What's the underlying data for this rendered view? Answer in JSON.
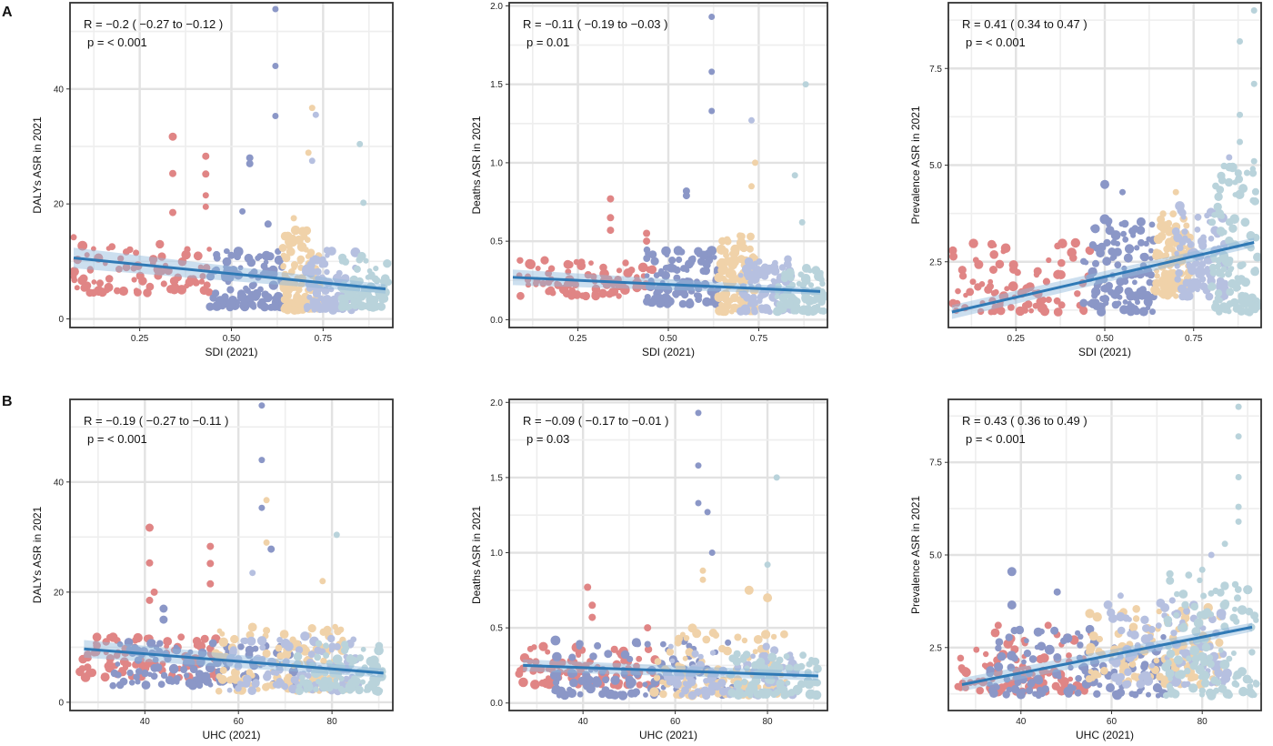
{
  "row_labels": [
    "A",
    "B"
  ],
  "colors": {
    "palette": [
      "#e08585",
      "#8b97c7",
      "#f0d2a9",
      "#b6c0e0",
      "#b9d3db"
    ],
    "trend": "#2f79b5",
    "band": "#8fb9dc"
  },
  "chart_data": [
    {
      "type": "scatter",
      "xlabel": "SDI (2021)",
      "ylabel": "DALYs ASR in 2021",
      "xlim": [
        0.06,
        0.94
      ],
      "ylim": [
        -1.5,
        55
      ],
      "xticks": [
        0.25,
        0.5,
        0.75
      ],
      "xtick_labels": [
        "0.25",
        "0.50",
        "0.75"
      ],
      "yticks": [
        0,
        20,
        40
      ],
      "ytick_labels": [
        "0",
        "20",
        "40"
      ],
      "annotation": {
        "r": "R = −0.2 ( −0.27  to  −0.12 )",
        "p": "p = < 0.001"
      },
      "trend": {
        "x": [
          0.07,
          0.92
        ],
        "y": [
          10.6,
          5.2
        ],
        "band": [
          1.8,
          0.8
        ]
      },
      "clusters": [
        {
          "x": [
            0.07,
            0.44
          ],
          "ylo": 4.5,
          "yhi": 13,
          "n": 80,
          "color": 0
        },
        {
          "x": [
            0.44,
            0.64
          ],
          "ylo": 2,
          "yhi": 12,
          "n": 110,
          "color": 1
        },
        {
          "x": [
            0.64,
            0.74
          ],
          "ylo": 1.5,
          "yhi": 16,
          "n": 110,
          "color": 2
        },
        {
          "x": [
            0.7,
            0.84
          ],
          "ylo": 1.5,
          "yhi": 12,
          "n": 90,
          "color": 3
        },
        {
          "x": [
            0.8,
            0.93
          ],
          "ylo": 2,
          "yhi": 11,
          "n": 80,
          "color": 4
        }
      ],
      "points": [
        [
          0.34,
          31.7,
          0,
          4.5
        ],
        [
          0.34,
          25.3,
          0,
          4
        ],
        [
          0.34,
          18.5,
          0,
          4
        ],
        [
          0.43,
          28.3,
          0,
          4
        ],
        [
          0.43,
          25.2,
          0,
          4
        ],
        [
          0.43,
          21.5,
          0,
          3.5
        ],
        [
          0.43,
          19.5,
          0,
          3.5
        ],
        [
          0.07,
          14.2,
          0,
          3.5
        ],
        [
          0.07,
          7.3,
          0,
          3.5
        ],
        [
          0.24,
          11.5,
          0,
          3.5
        ],
        [
          0.62,
          53.9,
          1,
          3.5
        ],
        [
          0.62,
          44,
          1,
          3.5
        ],
        [
          0.62,
          35.3,
          1,
          3.5
        ],
        [
          0.55,
          28,
          1,
          4
        ],
        [
          0.55,
          27,
          1,
          4
        ],
        [
          0.53,
          18.7,
          1,
          3.5
        ],
        [
          0.6,
          16.5,
          1,
          4
        ],
        [
          0.72,
          36.7,
          2,
          3.5
        ],
        [
          0.71,
          28.9,
          2,
          3.5
        ],
        [
          0.67,
          17.5,
          2,
          3.5
        ],
        [
          0.73,
          35.5,
          3,
          3.5
        ],
        [
          0.72,
          27.5,
          3,
          3.5
        ],
        [
          0.85,
          30.4,
          4,
          3.5
        ],
        [
          0.86,
          20.2,
          4,
          3.5
        ]
      ]
    },
    {
      "type": "scatter",
      "xlabel": "SDI (2021)",
      "ylabel": "Deaths ASR in 2021",
      "xlim": [
        0.06,
        0.94
      ],
      "ylim": [
        -0.05,
        2.02
      ],
      "xticks": [
        0.25,
        0.5,
        0.75
      ],
      "xtick_labels": [
        "0.25",
        "0.50",
        "0.75"
      ],
      "yticks": [
        0,
        0.5,
        1,
        1.5,
        2
      ],
      "ytick_labels": [
        "0.0",
        "0.5",
        "1.0",
        "1.5",
        "2.0"
      ],
      "annotation": {
        "r": "R = −0.11 ( −0.19  to  −0.03 )",
        "p": "p = 0.01"
      },
      "trend": {
        "x": [
          0.07,
          0.92
        ],
        "y": [
          0.27,
          0.18
        ],
        "band": [
          0.05,
          0.02
        ]
      },
      "clusters": [
        {
          "x": [
            0.07,
            0.46
          ],
          "ylo": 0.15,
          "yhi": 0.38,
          "n": 80,
          "color": 0
        },
        {
          "x": [
            0.44,
            0.64
          ],
          "ylo": 0.1,
          "yhi": 0.45,
          "n": 110,
          "color": 1
        },
        {
          "x": [
            0.64,
            0.74
          ],
          "ylo": 0.05,
          "yhi": 0.55,
          "n": 110,
          "color": 2
        },
        {
          "x": [
            0.7,
            0.84
          ],
          "ylo": 0.05,
          "yhi": 0.4,
          "n": 90,
          "color": 3
        },
        {
          "x": [
            0.8,
            0.93
          ],
          "ylo": 0.05,
          "yhi": 0.33,
          "n": 80,
          "color": 4
        }
      ],
      "points": [
        [
          0.34,
          0.77,
          0,
          4
        ],
        [
          0.34,
          0.65,
          0,
          4
        ],
        [
          0.34,
          0.57,
          0,
          4
        ],
        [
          0.44,
          0.55,
          0,
          4
        ],
        [
          0.44,
          0.5,
          0,
          4
        ],
        [
          0.62,
          1.93,
          1,
          3.5
        ],
        [
          0.62,
          1.58,
          1,
          3.5
        ],
        [
          0.62,
          1.33,
          1,
          3.5
        ],
        [
          0.55,
          0.82,
          1,
          4
        ],
        [
          0.55,
          0.79,
          1,
          4
        ],
        [
          0.73,
          1.27,
          3,
          3.5
        ],
        [
          0.74,
          1.0,
          2,
          3.5
        ],
        [
          0.73,
          0.85,
          2,
          3.5
        ],
        [
          0.88,
          1.5,
          4,
          3.5
        ],
        [
          0.85,
          0.92,
          4,
          3.5
        ],
        [
          0.87,
          0.62,
          4,
          3.5
        ]
      ]
    },
    {
      "type": "scatter",
      "xlabel": "SDI (2021)",
      "ylabel": "Prevalence ASR in 2021",
      "xlim": [
        0.06,
        0.94
      ],
      "ylim": [
        0.8,
        9.2
      ],
      "xticks": [
        0.25,
        0.5,
        0.75
      ],
      "xtick_labels": [
        "0.25",
        "0.50",
        "0.75"
      ],
      "yticks": [
        2.5,
        5,
        7.5
      ],
      "ytick_labels": [
        "2.5",
        "5.0",
        "7.5"
      ],
      "annotation": {
        "r": "R = 0.41 ( 0.34  to  0.47 )",
        "p": "p = < 0.001"
      },
      "trend": {
        "x": [
          0.07,
          0.92
        ],
        "y": [
          1.2,
          3.0
        ],
        "band": [
          0.18,
          0.12
        ]
      },
      "clusters": [
        {
          "x": [
            0.07,
            0.46
          ],
          "ylo": 1.2,
          "yhi": 3.0,
          "n": 90,
          "color": 0
        },
        {
          "x": [
            0.44,
            0.64
          ],
          "ylo": 1.2,
          "yhi": 3.6,
          "n": 120,
          "color": 1
        },
        {
          "x": [
            0.64,
            0.74
          ],
          "ylo": 1.6,
          "yhi": 3.8,
          "n": 110,
          "color": 2
        },
        {
          "x": [
            0.7,
            0.84
          ],
          "ylo": 1.6,
          "yhi": 4.0,
          "n": 100,
          "color": 3
        },
        {
          "x": [
            0.8,
            0.93
          ],
          "ylo": 1.2,
          "yhi": 5.0,
          "n": 110,
          "color": 4
        }
      ],
      "points": [
        [
          0.5,
          4.5,
          1,
          5
        ],
        [
          0.5,
          3.6,
          1,
          5.5
        ],
        [
          0.51,
          3.55,
          1,
          4.5
        ],
        [
          0.88,
          8.2,
          4,
          3.5
        ],
        [
          0.92,
          9.0,
          4,
          3.5
        ],
        [
          0.92,
          7.1,
          4,
          3.5
        ],
        [
          0.88,
          6.3,
          4,
          3.5
        ],
        [
          0.92,
          5.1,
          4,
          3.5
        ],
        [
          0.88,
          5.6,
          4,
          3.5
        ],
        [
          0.9,
          4.8,
          4,
          3.5
        ],
        [
          0.85,
          5.2,
          3,
          3.5
        ],
        [
          0.7,
          4.3,
          2,
          3.5
        ],
        [
          0.55,
          4.3,
          1,
          3.5
        ]
      ]
    },
    {
      "type": "scatter",
      "xlabel": "UHC (2021)",
      "ylabel": "DALYs ASR in 2021",
      "xlim": [
        24,
        93
      ],
      "ylim": [
        -1.5,
        55
      ],
      "xticks": [
        40,
        60,
        80
      ],
      "xtick_labels": [
        "40",
        "60",
        "80"
      ],
      "yticks": [
        0,
        20,
        40
      ],
      "ytick_labels": [
        "0",
        "20",
        "40"
      ],
      "annotation": {
        "r": "R = −0.19 ( −0.27  to  −0.11 )",
        "p": "p = < 0.001"
      },
      "trend": {
        "x": [
          27,
          91
        ],
        "y": [
          9.7,
          5.3
        ],
        "band": [
          1.6,
          0.8
        ]
      },
      "clusters": [
        {
          "x": [
            26,
            56
          ],
          "ylo": 4.5,
          "yhi": 12,
          "n": 90,
          "color": 0
        },
        {
          "x": [
            33,
            73
          ],
          "ylo": 3,
          "yhi": 11,
          "n": 110,
          "color": 1
        },
        {
          "x": [
            55,
            84
          ],
          "ylo": 2,
          "yhi": 14,
          "n": 110,
          "color": 2
        },
        {
          "x": [
            58,
            86
          ],
          "ylo": 2,
          "yhi": 12,
          "n": 90,
          "color": 3
        },
        {
          "x": [
            72,
            91
          ],
          "ylo": 2,
          "yhi": 11,
          "n": 90,
          "color": 4
        }
      ],
      "points": [
        [
          41,
          31.7,
          0,
          4.5
        ],
        [
          41,
          25.3,
          0,
          4
        ],
        [
          41,
          18.5,
          0,
          4
        ],
        [
          42,
          20,
          0,
          4
        ],
        [
          54,
          28.3,
          0,
          4
        ],
        [
          54,
          25.2,
          0,
          4
        ],
        [
          54,
          21.5,
          0,
          4
        ],
        [
          65,
          53.9,
          1,
          3.5
        ],
        [
          65,
          44,
          1,
          3.5
        ],
        [
          65,
          35.3,
          1,
          3.5
        ],
        [
          67,
          27.8,
          1,
          4
        ],
        [
          66,
          36.7,
          2,
          3.5
        ],
        [
          66,
          29,
          2,
          3.5
        ],
        [
          63,
          23.5,
          3,
          3.5
        ],
        [
          81,
          30.4,
          4,
          3.5
        ],
        [
          78,
          22,
          2,
          3.5
        ],
        [
          44,
          17,
          1,
          4.5
        ],
        [
          44,
          15,
          1,
          4.5
        ]
      ]
    },
    {
      "type": "scatter",
      "xlabel": "UHC (2021)",
      "ylabel": "Deaths ASR in 2021",
      "xlim": [
        24,
        93
      ],
      "ylim": [
        -0.05,
        2.02
      ],
      "xticks": [
        40,
        60,
        80
      ],
      "xtick_labels": [
        "40",
        "60",
        "80"
      ],
      "yticks": [
        0,
        0.5,
        1,
        1.5,
        2
      ],
      "ytick_labels": [
        "0.0",
        "0.5",
        "1.0",
        "1.5",
        "2.0"
      ],
      "annotation": {
        "r": "R = −0.09 ( −0.17  to  −0.01 )",
        "p": "p = 0.03"
      },
      "trend": {
        "x": [
          27,
          91
        ],
        "y": [
          0.25,
          0.18
        ],
        "band": [
          0.04,
          0.03
        ]
      },
      "clusters": [
        {
          "x": [
            26,
            56
          ],
          "ylo": 0.12,
          "yhi": 0.38,
          "n": 90,
          "color": 0
        },
        {
          "x": [
            33,
            73
          ],
          "ylo": 0.05,
          "yhi": 0.42,
          "n": 110,
          "color": 1
        },
        {
          "x": [
            55,
            84
          ],
          "ylo": 0.05,
          "yhi": 0.5,
          "n": 110,
          "color": 2
        },
        {
          "x": [
            58,
            86
          ],
          "ylo": 0.05,
          "yhi": 0.38,
          "n": 90,
          "color": 3
        },
        {
          "x": [
            72,
            91
          ],
          "ylo": 0.05,
          "yhi": 0.33,
          "n": 90,
          "color": 4
        }
      ],
      "points": [
        [
          41,
          0.77,
          0,
          4
        ],
        [
          42,
          0.65,
          0,
          4
        ],
        [
          42,
          0.57,
          0,
          4
        ],
        [
          54,
          0.5,
          0,
          4
        ],
        [
          65,
          1.93,
          1,
          3.5
        ],
        [
          65,
          1.58,
          1,
          3.5
        ],
        [
          65,
          1.33,
          1,
          3.5
        ],
        [
          67,
          1.27,
          1,
          3.5
        ],
        [
          66,
          0.88,
          2,
          3.5
        ],
        [
          66,
          0.82,
          2,
          3.5
        ],
        [
          68,
          1.0,
          1,
          3.5
        ],
        [
          82,
          1.5,
          4,
          3.5
        ],
        [
          80,
          0.92,
          4,
          3.5
        ],
        [
          76,
          0.75,
          2,
          5
        ],
        [
          80,
          0.7,
          2,
          5
        ]
      ]
    },
    {
      "type": "scatter",
      "xlabel": "UHC (2021)",
      "ylabel": "Prevalence ASR in 2021",
      "xlim": [
        24,
        93
      ],
      "ylim": [
        0.8,
        9.2
      ],
      "xticks": [
        40,
        60,
        80
      ],
      "xtick_labels": [
        "40",
        "60",
        "80"
      ],
      "yticks": [
        2.5,
        5,
        7.5
      ],
      "ytick_labels": [
        "2.5",
        "5.0",
        "7.5"
      ],
      "annotation": {
        "r": "R = 0.43 ( 0.36  to  0.49 )",
        "p": "p = < 0.001"
      },
      "trend": {
        "x": [
          27,
          91
        ],
        "y": [
          1.5,
          3.05
        ],
        "band": [
          0.18,
          0.12
        ]
      },
      "clusters": [
        {
          "x": [
            26,
            56
          ],
          "ylo": 1.3,
          "yhi": 2.9,
          "n": 100,
          "color": 0
        },
        {
          "x": [
            33,
            73
          ],
          "ylo": 1.2,
          "yhi": 3.0,
          "n": 120,
          "color": 1
        },
        {
          "x": [
            55,
            84
          ],
          "ylo": 1.5,
          "yhi": 3.6,
          "n": 110,
          "color": 2
        },
        {
          "x": [
            58,
            86
          ],
          "ylo": 1.5,
          "yhi": 3.8,
          "n": 100,
          "color": 3
        },
        {
          "x": [
            72,
            92
          ],
          "ylo": 1.2,
          "yhi": 4.5,
          "n": 110,
          "color": 4
        }
      ],
      "points": [
        [
          38,
          4.55,
          1,
          5
        ],
        [
          38,
          3.65,
          1,
          5
        ],
        [
          48,
          4.0,
          1,
          4
        ],
        [
          88,
          9.0,
          4,
          3.5
        ],
        [
          88,
          8.2,
          4,
          3.5
        ],
        [
          88,
          7.1,
          4,
          3.5
        ],
        [
          88,
          6.3,
          4,
          3.5
        ],
        [
          88,
          5.9,
          4,
          3.5
        ],
        [
          85,
          5.3,
          4,
          3.5
        ],
        [
          82,
          5.0,
          3,
          3.5
        ],
        [
          80,
          4.6,
          4,
          3.5
        ],
        [
          62,
          3.9,
          3,
          3.5
        ],
        [
          46,
          3.1,
          0,
          4
        ],
        [
          35,
          3.1,
          0,
          4
        ]
      ]
    }
  ]
}
